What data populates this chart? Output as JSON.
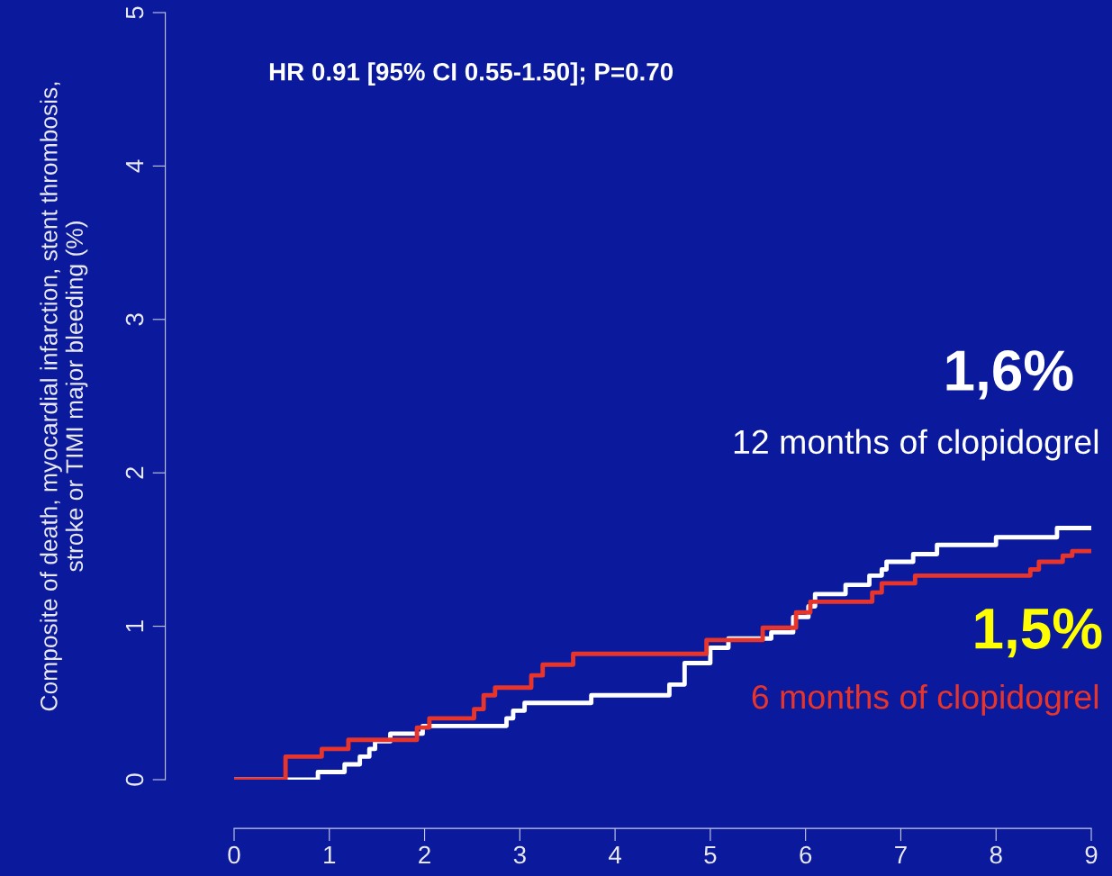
{
  "chart_data": {
    "type": "step",
    "ylabel": "Composite of death, myocardial infarction, stent thrombosis,\nstroke or TIMI major bleeding (%)",
    "xlim": [
      0,
      9
    ],
    "xticks": [
      0,
      1,
      2,
      3,
      4,
      5,
      6,
      7,
      8,
      9
    ],
    "ylim": [
      0,
      5
    ],
    "yticks": [
      0,
      1,
      2,
      3,
      4,
      5
    ],
    "grid": false,
    "legend": false,
    "marker": "none",
    "line_style": "solid",
    "series": [
      {
        "name": "12 months of clopidogrel",
        "color": "#ffffff",
        "x": [
          0,
          0.88,
          1.16,
          1.32,
          1.42,
          1.48,
          1.64,
          1.98,
          2.86,
          2.93,
          3.05,
          3.75,
          4.57,
          4.73,
          5.0,
          5.19,
          5.64,
          5.87,
          6.03,
          6.1,
          6.42,
          6.67,
          6.8,
          6.85,
          7.13,
          7.38,
          8.0,
          8.64,
          9.0
        ],
        "values": [
          0,
          0.05,
          0.1,
          0.15,
          0.2,
          0.25,
          0.3,
          0.35,
          0.4,
          0.45,
          0.5,
          0.55,
          0.62,
          0.76,
          0.86,
          0.92,
          0.96,
          1.06,
          1.13,
          1.21,
          1.27,
          1.33,
          1.37,
          1.42,
          1.47,
          1.53,
          1.58,
          1.64,
          1.64
        ]
      },
      {
        "name": "6 months of clopidogrel",
        "color": "#e8352b",
        "x": [
          0,
          0.54,
          0.92,
          1.2,
          1.92,
          2.05,
          2.52,
          2.62,
          2.74,
          3.12,
          3.24,
          3.56,
          4.96,
          5.55,
          5.9,
          6.05,
          6.7,
          6.8,
          7.15,
          8.36,
          8.45,
          8.7,
          8.8,
          9.0
        ],
        "values": [
          0,
          0.15,
          0.2,
          0.26,
          0.34,
          0.4,
          0.46,
          0.55,
          0.6,
          0.68,
          0.75,
          0.82,
          0.91,
          0.99,
          1.09,
          1.16,
          1.22,
          1.28,
          1.33,
          1.37,
          1.42,
          1.46,
          1.49,
          1.49
        ]
      }
    ],
    "annotations": [
      "HR 0.91 [95% CI 0.55-1.50]; P=0.70",
      {
        "text": "1,6%",
        "x": 9.0,
        "y": 1.64
      },
      {
        "text": "1,5%",
        "x": 9.0,
        "y": 1.49
      }
    ]
  }
}
